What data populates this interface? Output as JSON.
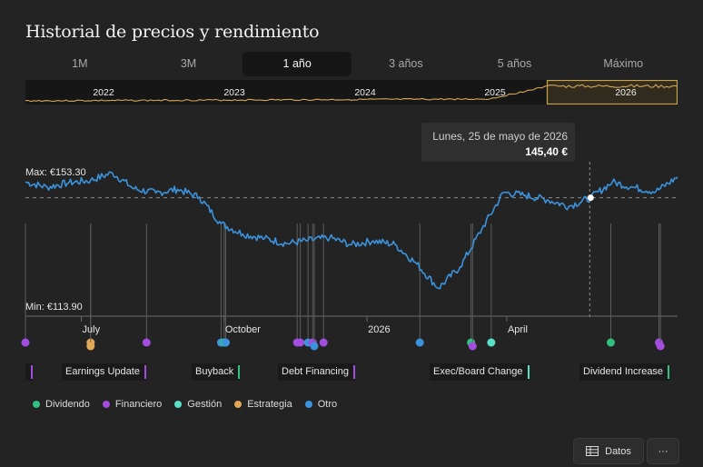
{
  "title": "Historial de precios y rendimiento",
  "tabs": [
    {
      "label": "1M",
      "active": false
    },
    {
      "label": "3M",
      "active": false
    },
    {
      "label": "1 año",
      "active": true
    },
    {
      "label": "3 años",
      "active": false
    },
    {
      "label": "5 años",
      "active": false
    },
    {
      "label": "Máximo",
      "active": false
    }
  ],
  "navigator": {
    "years": [
      "2022",
      "2023",
      "2024",
      "2025",
      "2026"
    ],
    "line_color": "#d8a657",
    "window_color": "#c9a24a"
  },
  "tooltip": {
    "date": "Lunes, 25 de mayo de 2026",
    "value": "145,40 €"
  },
  "chart_data": {
    "type": "line",
    "line_color": "#3b93dd",
    "max_label": "Max: €153.30",
    "min_label": "Min: €113.90",
    "reference_value": 145.4,
    "ylim": [
      113.9,
      153.3
    ],
    "x_tick_labels": [
      "July",
      "October",
      "2026",
      "April"
    ],
    "x": [
      "2025-05-26",
      "2025-06-09",
      "2025-06-23",
      "2025-07-07",
      "2025-07-21",
      "2025-08-04",
      "2025-08-18",
      "2025-09-01",
      "2025-09-15",
      "2025-09-29",
      "2025-10-13",
      "2025-10-27",
      "2025-11-10",
      "2025-11-24",
      "2025-12-08",
      "2025-12-22",
      "2026-01-05",
      "2026-01-19",
      "2026-02-02",
      "2026-02-16",
      "2026-03-02",
      "2026-03-16",
      "2026-03-30",
      "2026-04-13",
      "2026-04-27",
      "2026-05-11",
      "2026-05-25",
      "2026-06-08",
      "2026-06-22",
      "2026-07-06",
      "2026-07-20"
    ],
    "series": [
      {
        "values": [
          150.0,
          148.5,
          149.8,
          150.5,
          152.7,
          148.0,
          146.8,
          147.9,
          145.6,
          137.8,
          134.8,
          133.5,
          132.0,
          132.9,
          133.7,
          131.6,
          132.8,
          131.7,
          126.0,
          118.9,
          125.2,
          136.3,
          147.0,
          146.1,
          144.8,
          142.9,
          145.4,
          150.0,
          148.4,
          147.2,
          151.5
        ]
      }
    ]
  },
  "events": [
    {
      "date": "2025-05-26",
      "type": "Financiero"
    },
    {
      "date": "2025-07-07",
      "type": "Estrategia"
    },
    {
      "date": "2025-07-07",
      "type": "Estrategia"
    },
    {
      "date": "2025-08-12",
      "type": "Financiero"
    },
    {
      "date": "2025-09-29",
      "type": "Otro"
    },
    {
      "date": "2025-10-01",
      "type": "Dividendo"
    },
    {
      "date": "2025-10-02",
      "type": "Otro"
    },
    {
      "date": "2025-11-17",
      "type": "Financiero"
    },
    {
      "date": "2025-11-19",
      "type": "Financiero"
    },
    {
      "date": "2025-11-24",
      "type": "Otro"
    },
    {
      "date": "2025-11-27",
      "type": "Financiero"
    },
    {
      "date": "2025-11-28",
      "type": "Otro"
    },
    {
      "date": "2025-12-04",
      "type": "Financiero"
    },
    {
      "date": "2026-02-04",
      "type": "Otro"
    },
    {
      "date": "2026-03-09",
      "type": "Dividendo"
    },
    {
      "date": "2026-03-10",
      "type": "Financiero"
    },
    {
      "date": "2026-03-22",
      "type": "Gestión"
    },
    {
      "date": "2026-06-07",
      "type": "Dividendo"
    },
    {
      "date": "2026-07-08",
      "type": "Financiero"
    },
    {
      "date": "2026-07-09",
      "type": "Financiero"
    }
  ],
  "event_labels": [
    {
      "text": "",
      "type": "Financiero"
    },
    {
      "text": "Earnings Update",
      "type": "Financiero"
    },
    {
      "text": "Buyback",
      "type": "Dividendo"
    },
    {
      "text": "Debt Financing",
      "type": "Financiero"
    },
    {
      "text": "Exec/Board Change",
      "type": "Gestión"
    },
    {
      "text": "Dividend Increase",
      "type": "Dividendo"
    }
  ],
  "legend": [
    {
      "label": "Dividendo",
      "color": "#2ec27e"
    },
    {
      "label": "Financiero",
      "color": "#a24de0"
    },
    {
      "label": "Gestión",
      "color": "#58e0c6"
    },
    {
      "label": "Estrategia",
      "color": "#e3a857"
    },
    {
      "label": "Otro",
      "color": "#3b93dd"
    }
  ],
  "buttons": {
    "data": "Datos",
    "more": "···"
  }
}
